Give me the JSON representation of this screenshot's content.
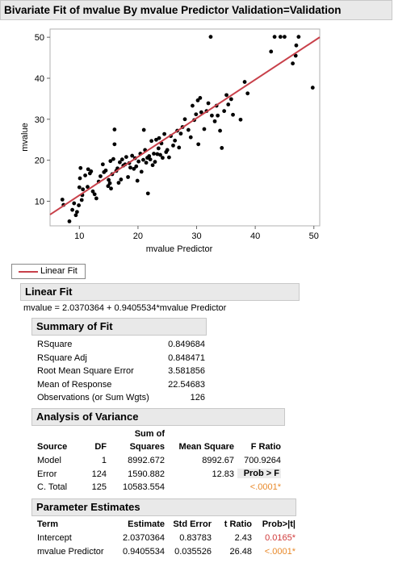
{
  "report": {
    "title": "Bivariate Fit of mvalue By mvalue Predictor Validation=Validation"
  },
  "chart_data": {
    "type": "scatter",
    "xlabel": "mvalue Predictor",
    "ylabel": "mvalue",
    "xlim": [
      5,
      51
    ],
    "ylim": [
      4,
      52
    ],
    "xticks": [
      10,
      20,
      30,
      40,
      50
    ],
    "yticks": [
      10,
      20,
      30,
      40,
      50
    ],
    "grid": false,
    "fit_line": {
      "intercept": 2.0370364,
      "slope": 0.9405534,
      "color": "#c8404a"
    },
    "points": [
      [
        7.1,
        10.4
      ],
      [
        7.3,
        9.1
      ],
      [
        8.3,
        5.1
      ],
      [
        8.8,
        7.9
      ],
      [
        9.1,
        9.5
      ],
      [
        9.4,
        6.6
      ],
      [
        9.6,
        7.4
      ],
      [
        9.9,
        9.0
      ],
      [
        10.0,
        13.4
      ],
      [
        10.1,
        15.6
      ],
      [
        10.2,
        18.1
      ],
      [
        10.4,
        10.3
      ],
      [
        10.5,
        11.5
      ],
      [
        10.6,
        12.9
      ],
      [
        11.0,
        16.3
      ],
      [
        11.4,
        13.5
      ],
      [
        11.5,
        17.8
      ],
      [
        11.8,
        16.8
      ],
      [
        12.0,
        17.3
      ],
      [
        12.3,
        12.4
      ],
      [
        12.6,
        11.7
      ],
      [
        12.9,
        10.7
      ],
      [
        13.3,
        14.8
      ],
      [
        13.6,
        16.1
      ],
      [
        14.0,
        19.0
      ],
      [
        14.2,
        17.1
      ],
      [
        14.5,
        17.5
      ],
      [
        14.9,
        13.7
      ],
      [
        15.0,
        15.2
      ],
      [
        15.2,
        14.4
      ],
      [
        15.3,
        19.8
      ],
      [
        15.4,
        13.1
      ],
      [
        15.6,
        16.6
      ],
      [
        15.8,
        20.3
      ],
      [
        16.0,
        23.9
      ],
      [
        16.0,
        27.5
      ],
      [
        16.3,
        17.4
      ],
      [
        16.5,
        18.0
      ],
      [
        16.7,
        14.5
      ],
      [
        16.9,
        19.5
      ],
      [
        17.1,
        15.3
      ],
      [
        17.3,
        20.2
      ],
      [
        17.5,
        18.7
      ],
      [
        17.8,
        19.0
      ],
      [
        18.0,
        20.8
      ],
      [
        18.3,
        15.9
      ],
      [
        18.5,
        19.3
      ],
      [
        18.7,
        18.2
      ],
      [
        19.0,
        21.1
      ],
      [
        19.3,
        17.9
      ],
      [
        19.5,
        20.5
      ],
      [
        19.7,
        18.5
      ],
      [
        19.9,
        15.0
      ],
      [
        20.1,
        19.7
      ],
      [
        20.4,
        21.6
      ],
      [
        20.6,
        17.2
      ],
      [
        20.9,
        20.1
      ],
      [
        21.0,
        27.4
      ],
      [
        21.2,
        22.5
      ],
      [
        21.4,
        19.4
      ],
      [
        21.6,
        20.6
      ],
      [
        21.7,
        11.9
      ],
      [
        21.9,
        21.0
      ],
      [
        22.1,
        20.2
      ],
      [
        22.3,
        24.7
      ],
      [
        22.5,
        18.8
      ],
      [
        22.7,
        21.6
      ],
      [
        22.9,
        19.6
      ],
      [
        23.1,
        25.0
      ],
      [
        23.3,
        21.5
      ],
      [
        23.5,
        22.9
      ],
      [
        23.6,
        25.4
      ],
      [
        23.8,
        21.3
      ],
      [
        24.0,
        24.1
      ],
      [
        24.2,
        20.6
      ],
      [
        24.5,
        26.4
      ],
      [
        24.8,
        22.0
      ],
      [
        25.0,
        22.5
      ],
      [
        25.3,
        20.7
      ],
      [
        25.6,
        25.9
      ],
      [
        26.0,
        23.6
      ],
      [
        26.3,
        24.8
      ],
      [
        26.7,
        27.2
      ],
      [
        27.0,
        23.1
      ],
      [
        27.3,
        26.5
      ],
      [
        27.6,
        28.1
      ],
      [
        28.0,
        30.0
      ],
      [
        28.6,
        27.4
      ],
      [
        29.0,
        25.6
      ],
      [
        29.3,
        33.3
      ],
      [
        29.6,
        29.8
      ],
      [
        29.9,
        31.2
      ],
      [
        30.2,
        34.6
      ],
      [
        30.3,
        23.9
      ],
      [
        30.6,
        35.2
      ],
      [
        30.8,
        31.7
      ],
      [
        31.3,
        27.6
      ],
      [
        31.7,
        32.0
      ],
      [
        32.0,
        33.9
      ],
      [
        32.4,
        50.1
      ],
      [
        32.6,
        30.9
      ],
      [
        33.1,
        29.5
      ],
      [
        33.4,
        33.3
      ],
      [
        33.6,
        30.9
      ],
      [
        34.0,
        27.2
      ],
      [
        34.3,
        23.0
      ],
      [
        34.7,
        32.0
      ],
      [
        35.1,
        35.9
      ],
      [
        35.4,
        33.6
      ],
      [
        35.9,
        34.9
      ],
      [
        36.2,
        31.1
      ],
      [
        37.5,
        29.9
      ],
      [
        38.2,
        39.1
      ],
      [
        38.7,
        36.3
      ],
      [
        42.7,
        46.5
      ],
      [
        43.3,
        50.1
      ],
      [
        44.3,
        50.1
      ],
      [
        45.0,
        50.1
      ],
      [
        46.4,
        43.6
      ],
      [
        46.9,
        45.5
      ],
      [
        47.0,
        48.0
      ],
      [
        47.4,
        50.1
      ],
      [
        49.8,
        37.7
      ]
    ]
  },
  "legend": {
    "label": "Linear Fit"
  },
  "linear_fit": {
    "header": "Linear Fit",
    "equation": "mvalue = 2.0370364 + 0.9405534*mvalue Predictor"
  },
  "summary_of_fit": {
    "header": "Summary of Fit",
    "rows": [
      {
        "label": "RSquare",
        "value": "0.849684"
      },
      {
        "label": "RSquare Adj",
        "value": "0.848471"
      },
      {
        "label": "Root Mean Square Error",
        "value": "3.581856"
      },
      {
        "label": "Mean of Response",
        "value": "22.54683"
      },
      {
        "label": "Observations (or Sum Wgts)",
        "value": "126"
      }
    ]
  },
  "anova": {
    "header": "Analysis of Variance",
    "col_source": "Source",
    "col_df": "DF",
    "col_ss_top": "Sum of",
    "col_ss": "Squares",
    "col_ms": "Mean Square",
    "col_f": "F Ratio",
    "model": {
      "source": "Model",
      "df": "1",
      "ss": "8992.672",
      "ms": "8992.67",
      "f": "700.9264"
    },
    "error": {
      "source": "Error",
      "df": "124",
      "ss": "1590.882",
      "ms": "12.83",
      "prob_label": "Prob > F"
    },
    "total": {
      "source": "C. Total",
      "df": "125",
      "ss": "10583.554",
      "prob": "<.0001*"
    }
  },
  "parameter_estimates": {
    "header": "Parameter Estimates",
    "col_term": "Term",
    "col_est": "Estimate",
    "col_se": "Std Error",
    "col_t": "t Ratio",
    "col_p": "Prob>|t|",
    "rows": [
      {
        "term": "Intercept",
        "est": "2.0370364",
        "se": "0.83783",
        "t": "2.43",
        "p": "0.0165*"
      },
      {
        "term": "mvalue Predictor",
        "est": "0.9405534",
        "se": "0.035526",
        "t": "26.48",
        "p": "<.0001*"
      }
    ]
  },
  "colors": {
    "fit_line": "#c8404a",
    "sig_red": "#d03a3a",
    "sig_orange": "#e8892a"
  }
}
